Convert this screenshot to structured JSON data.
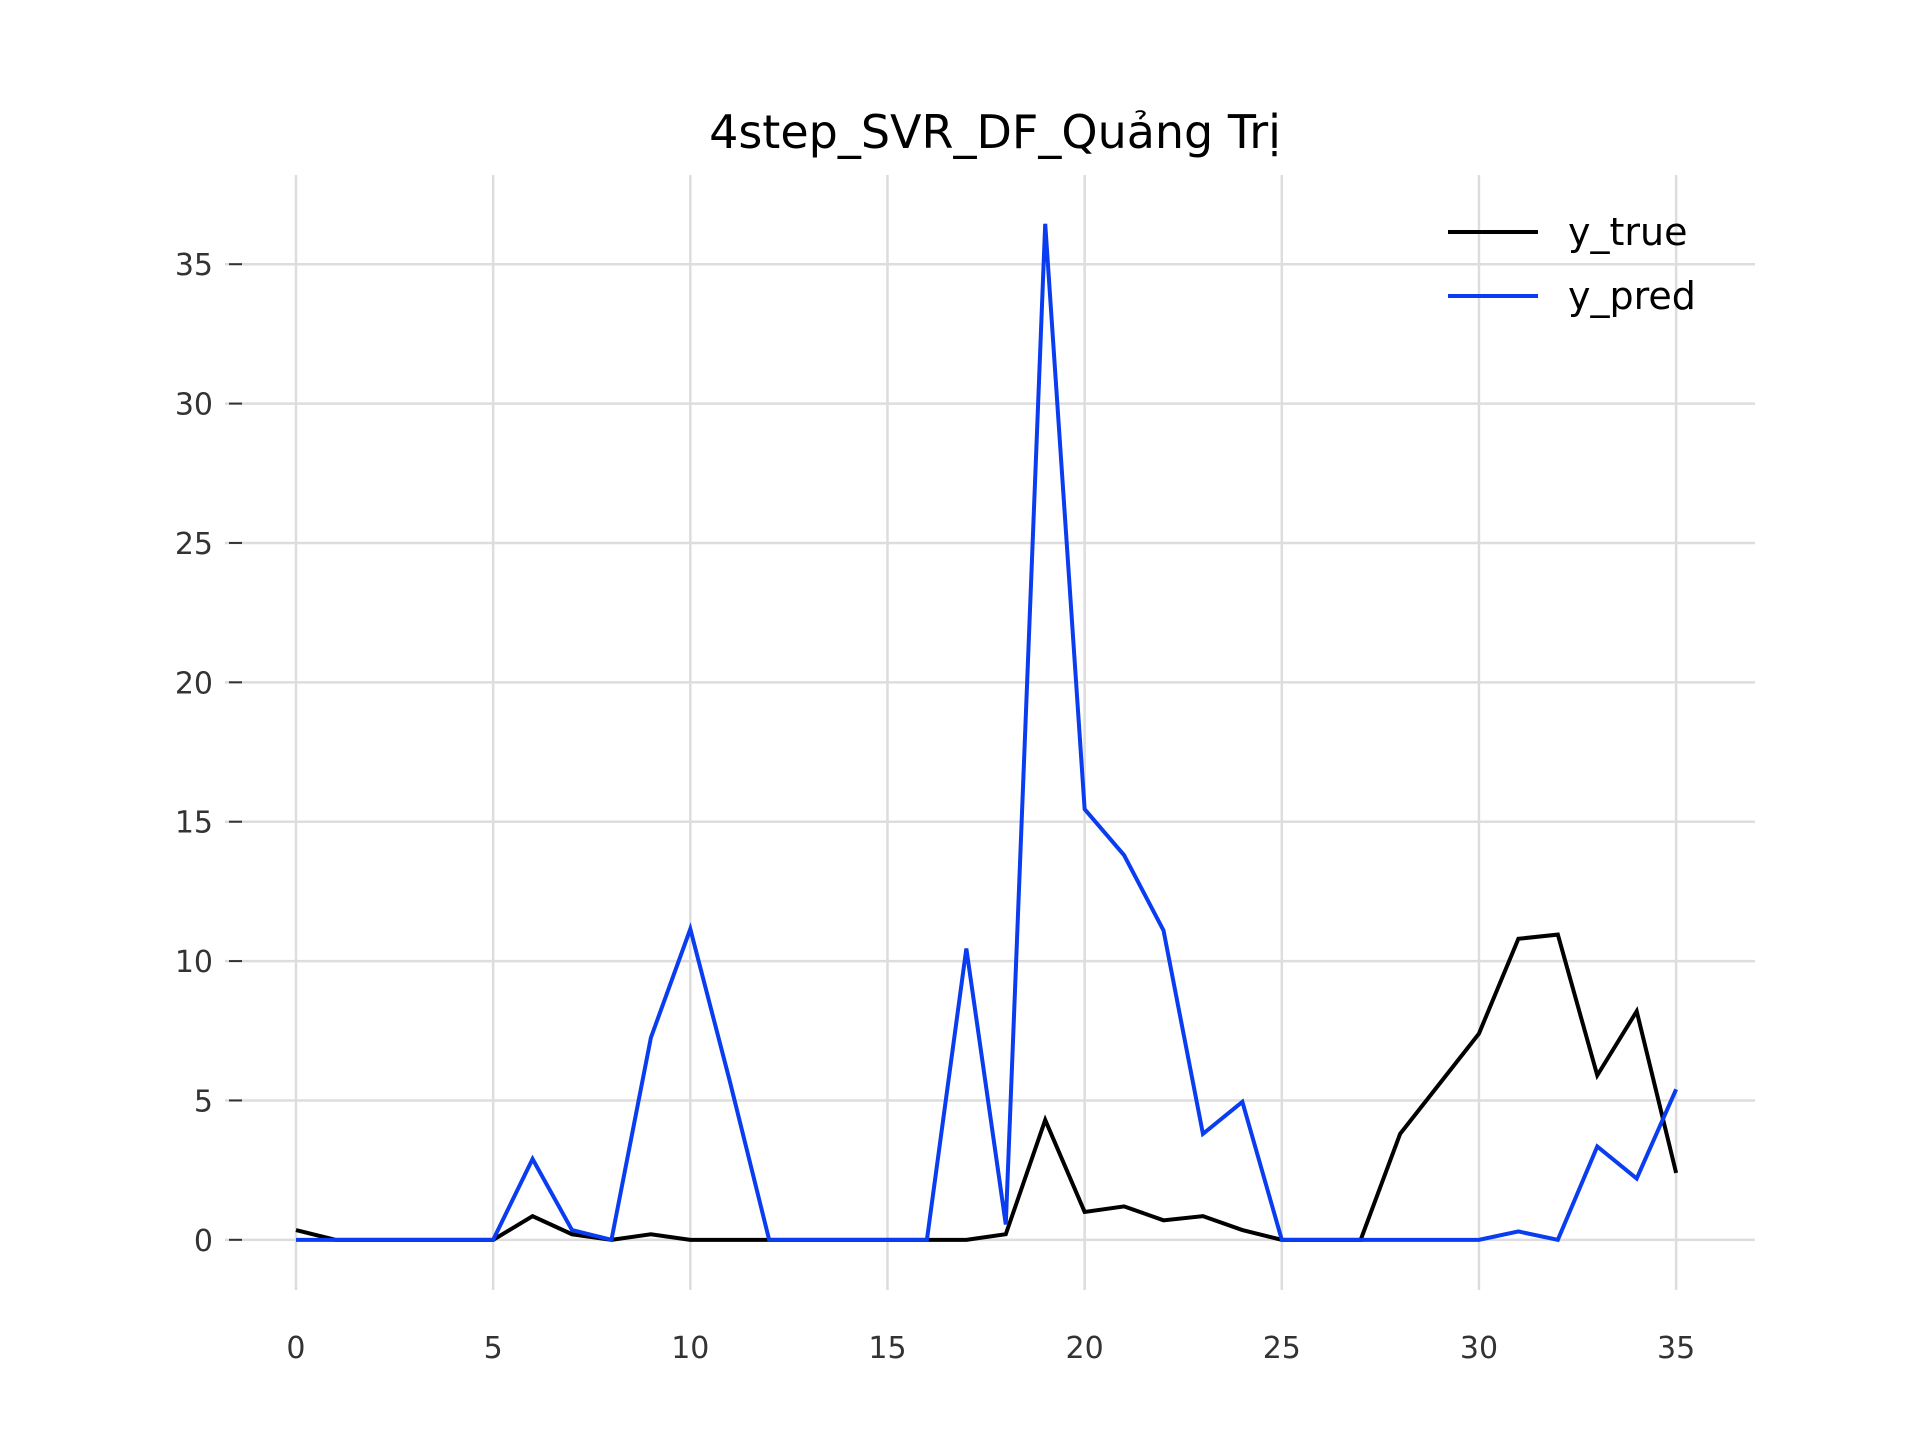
{
  "chart_data": {
    "type": "line",
    "title": "4step_SVR_DF_Quảng Trị",
    "xlabel": "",
    "ylabel": "",
    "xlim": [
      -1.8,
      37.0
    ],
    "ylim": [
      -1.8,
      38.2
    ],
    "x_ticks": [
      0,
      5,
      10,
      15,
      20,
      25,
      30,
      35
    ],
    "y_ticks": [
      0,
      5,
      10,
      15,
      20,
      25,
      30,
      35
    ],
    "grid": true,
    "legend_position": "top-right",
    "x": [
      0,
      1,
      2,
      3,
      4,
      5,
      6,
      7,
      8,
      9,
      10,
      11,
      12,
      13,
      14,
      15,
      16,
      17,
      18,
      19,
      20,
      21,
      22,
      23,
      24,
      25,
      26,
      27,
      28,
      29,
      30,
      31,
      32,
      33,
      34,
      35
    ],
    "series": [
      {
        "name": "y_true",
        "color": "#000000",
        "values": [
          0.35,
          0,
          0,
          0,
          0,
          0,
          0.85,
          0.2,
          0,
          0.2,
          0,
          0,
          0,
          0,
          0,
          0,
          0,
          0,
          0.2,
          4.3,
          1.0,
          1.2,
          0.7,
          0.85,
          0.35,
          0,
          0,
          0,
          3.8,
          5.6,
          7.4,
          10.8,
          10.95,
          5.9,
          8.2,
          2.4
        ]
      },
      {
        "name": "y_pred",
        "color": "#0a3cf0",
        "values": [
          0,
          0,
          0,
          0,
          0,
          0,
          2.9,
          0.35,
          0,
          7.25,
          11.15,
          5.7,
          0,
          0,
          0,
          0,
          0,
          10.45,
          0.55,
          36.45,
          15.45,
          13.8,
          11.1,
          3.8,
          4.95,
          0,
          0,
          0,
          0,
          0,
          0,
          0.3,
          0,
          3.35,
          2.2,
          5.4
        ]
      }
    ]
  }
}
